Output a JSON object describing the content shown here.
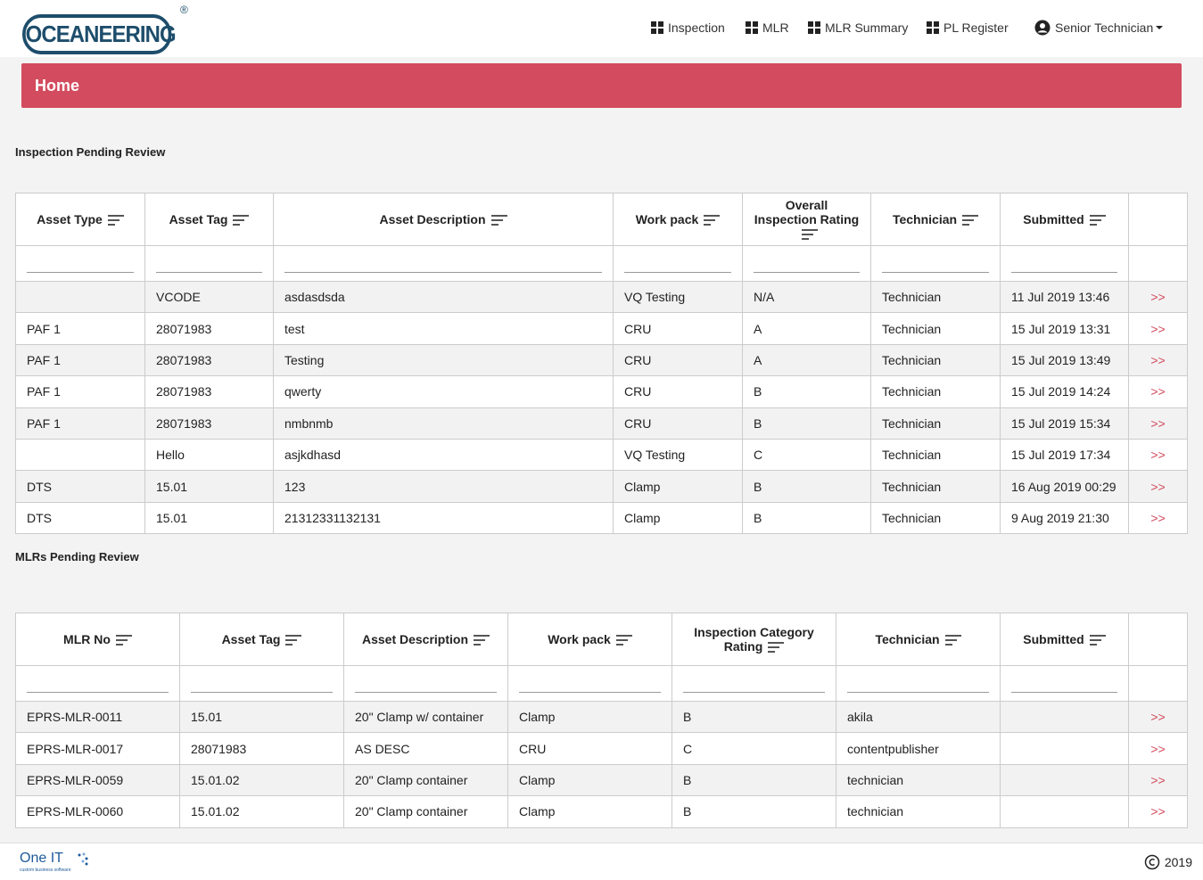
{
  "header": {
    "logo": "OCEANEERING",
    "registered": "®",
    "nav": [
      "Inspection",
      "MLR",
      "MLR Summary",
      "PL Register"
    ],
    "user": "Senior Technician"
  },
  "banner": {
    "title": "Home"
  },
  "sections": [
    {
      "title": "Inspection Pending Review",
      "table": {
        "headers": [
          "Asset Type",
          "Asset Tag",
          "Asset Description",
          "Work pack",
          "Overall Inspection Rating",
          "Technician",
          "Submitted"
        ],
        "rows": [
          [
            null,
            "VCODE",
            "asdasdsda",
            "VQ Testing",
            "N/A",
            "Technician",
            "11 Jul 2019 13:46",
            ">>"
          ],
          [
            "PAF 1",
            "28071983",
            "test",
            "CRU",
            "A",
            "Technician",
            "15 Jul 2019 13:31",
            ">>"
          ],
          [
            "PAF 1",
            "28071983",
            "Testing",
            "CRU",
            "A",
            "Technician",
            "15 Jul 2019 13:49",
            ">>"
          ],
          [
            "PAF 1",
            "28071983",
            "qwerty",
            "CRU",
            "B",
            "Technician",
            "15 Jul 2019 14:24",
            ">>"
          ],
          [
            "PAF 1",
            "28071983",
            "nmbnmb",
            "CRU",
            "B",
            "Technician",
            "15 Jul 2019 15:34",
            ">>"
          ],
          [
            null,
            "Hello",
            "asjkdhasd",
            "VQ Testing",
            "C",
            "Technician",
            "15 Jul 2019 17:34",
            ">>"
          ],
          [
            "DTS",
            "15.01",
            "123",
            "Clamp",
            "B",
            "Technician",
            "16 Aug 2019 00:29",
            ">>"
          ],
          [
            "DTS",
            "15.01",
            "21312331132131",
            "Clamp",
            "B",
            "Technician",
            "9 Aug 2019 21:30",
            ">>"
          ]
        ]
      }
    },
    {
      "title": "MLRs Pending Review",
      "table": {
        "headers": [
          "MLR No",
          "Asset Tag",
          "Asset Description",
          "Work pack",
          "Inspection Category Rating",
          "Technician",
          "Submitted"
        ],
        "rows": [
          [
            "EPRS-MLR-0011",
            "15.01",
            "20\" Clamp w/ container",
            "Clamp",
            "B",
            "akila",
            null,
            ">>"
          ],
          [
            "EPRS-MLR-0017",
            "28071983",
            "AS DESC",
            "CRU",
            "C",
            "contentpublisher",
            null,
            ">>"
          ],
          [
            "EPRS-MLR-0059",
            "15.01.02",
            "20\" Clamp container",
            "Clamp",
            "B",
            "technician",
            null,
            ">>"
          ],
          [
            "EPRS-MLR-0060",
            "15.01.02",
            "20\" Clamp container",
            "Clamp",
            "B",
            "technician",
            null,
            ">>"
          ]
        ]
      }
    }
  ],
  "footer": {
    "brand": "One IT",
    "tagline": "custom business software",
    "copyright": "2019"
  }
}
